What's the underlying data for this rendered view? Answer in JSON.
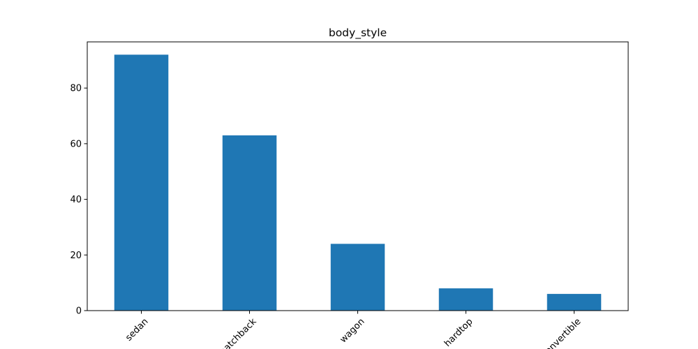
{
  "chart_data": {
    "type": "bar",
    "title": "body_style",
    "xlabel": "",
    "ylabel": "",
    "categories": [
      "sedan",
      "hatchback",
      "wagon",
      "hardtop",
      "convertible"
    ],
    "values": [
      92,
      63,
      24,
      8,
      6
    ],
    "ylim": [
      0,
      96.6
    ],
    "yticks": [
      0,
      20,
      40,
      60,
      80
    ],
    "grid": false,
    "legend": "none",
    "bar_color": "#1f77b4",
    "x_tick_rotation_deg": 45
  }
}
